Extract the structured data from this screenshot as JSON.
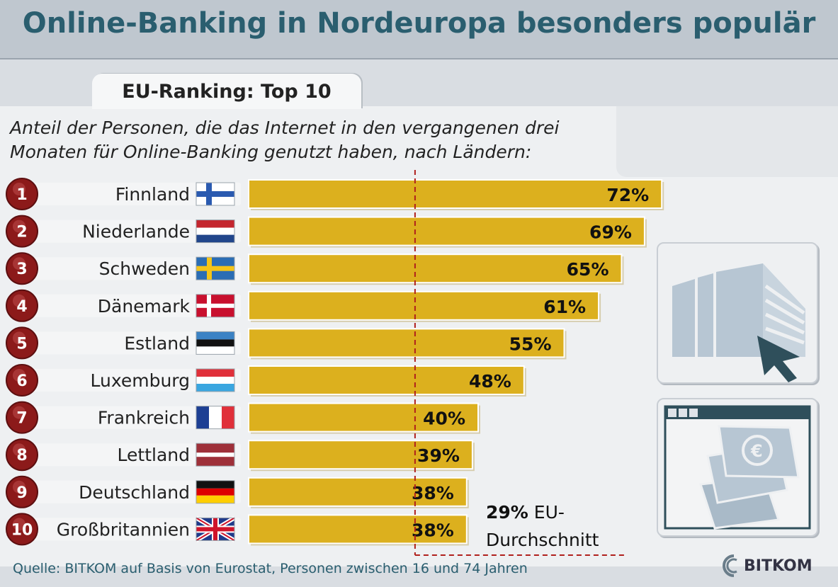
{
  "header": {
    "title": "Online-Banking in Nordeuropa besonders populär"
  },
  "tab": {
    "label": "EU-Ranking: Top 10"
  },
  "subtitle": {
    "line1": "Anteil der Personen, die das Internet in den vergangenen drei",
    "line2": "Monaten für Online-Banking genutzt haben, nach Ländern:"
  },
  "average": {
    "value": "29%",
    "label1": "EU-",
    "label2": "Durchschnitt"
  },
  "source": "Quelle: BITKOM auf Basis von Eurostat, Personen zwischen 16 und 74 Jahren",
  "logo": {
    "text": "BITKOM"
  },
  "colors": {
    "bar": "#dcb01e",
    "rank": "#8c1a1a",
    "title": "#2a5e6f",
    "avg_line": "#b0201c"
  },
  "chart_data": {
    "type": "bar",
    "orientation": "horizontal",
    "title": "Online-Banking in Nordeuropa besonders populär",
    "subtitle": "Anteil der Personen, die das Internet in den vergangenen drei Monaten für Online-Banking genutzt haben, nach Ländern:",
    "categories": [
      "Finnland",
      "Niederlande",
      "Schweden",
      "Dänemark",
      "Estland",
      "Luxemburg",
      "Frankreich",
      "Lettland",
      "Deutschland",
      "Großbritannien"
    ],
    "ranks": [
      "1",
      "2",
      "3",
      "4",
      "5",
      "6",
      "7",
      "8",
      "9",
      "10"
    ],
    "flags": [
      "flag-finland",
      "flag-netherlands",
      "flag-sweden",
      "flag-denmark",
      "flag-estonia",
      "flag-luxembourg",
      "flag-france",
      "flag-latvia",
      "flag-germany",
      "flag-uk"
    ],
    "values": [
      72,
      69,
      65,
      61,
      55,
      48,
      40,
      39,
      38,
      38
    ],
    "labels": [
      "72%",
      "69%",
      "65%",
      "61%",
      "55%",
      "48%",
      "40%",
      "39%",
      "38%",
      "38%"
    ],
    "reference_line": {
      "value": 29,
      "label": "29% EU-Durchschnitt"
    },
    "unit": "%"
  }
}
